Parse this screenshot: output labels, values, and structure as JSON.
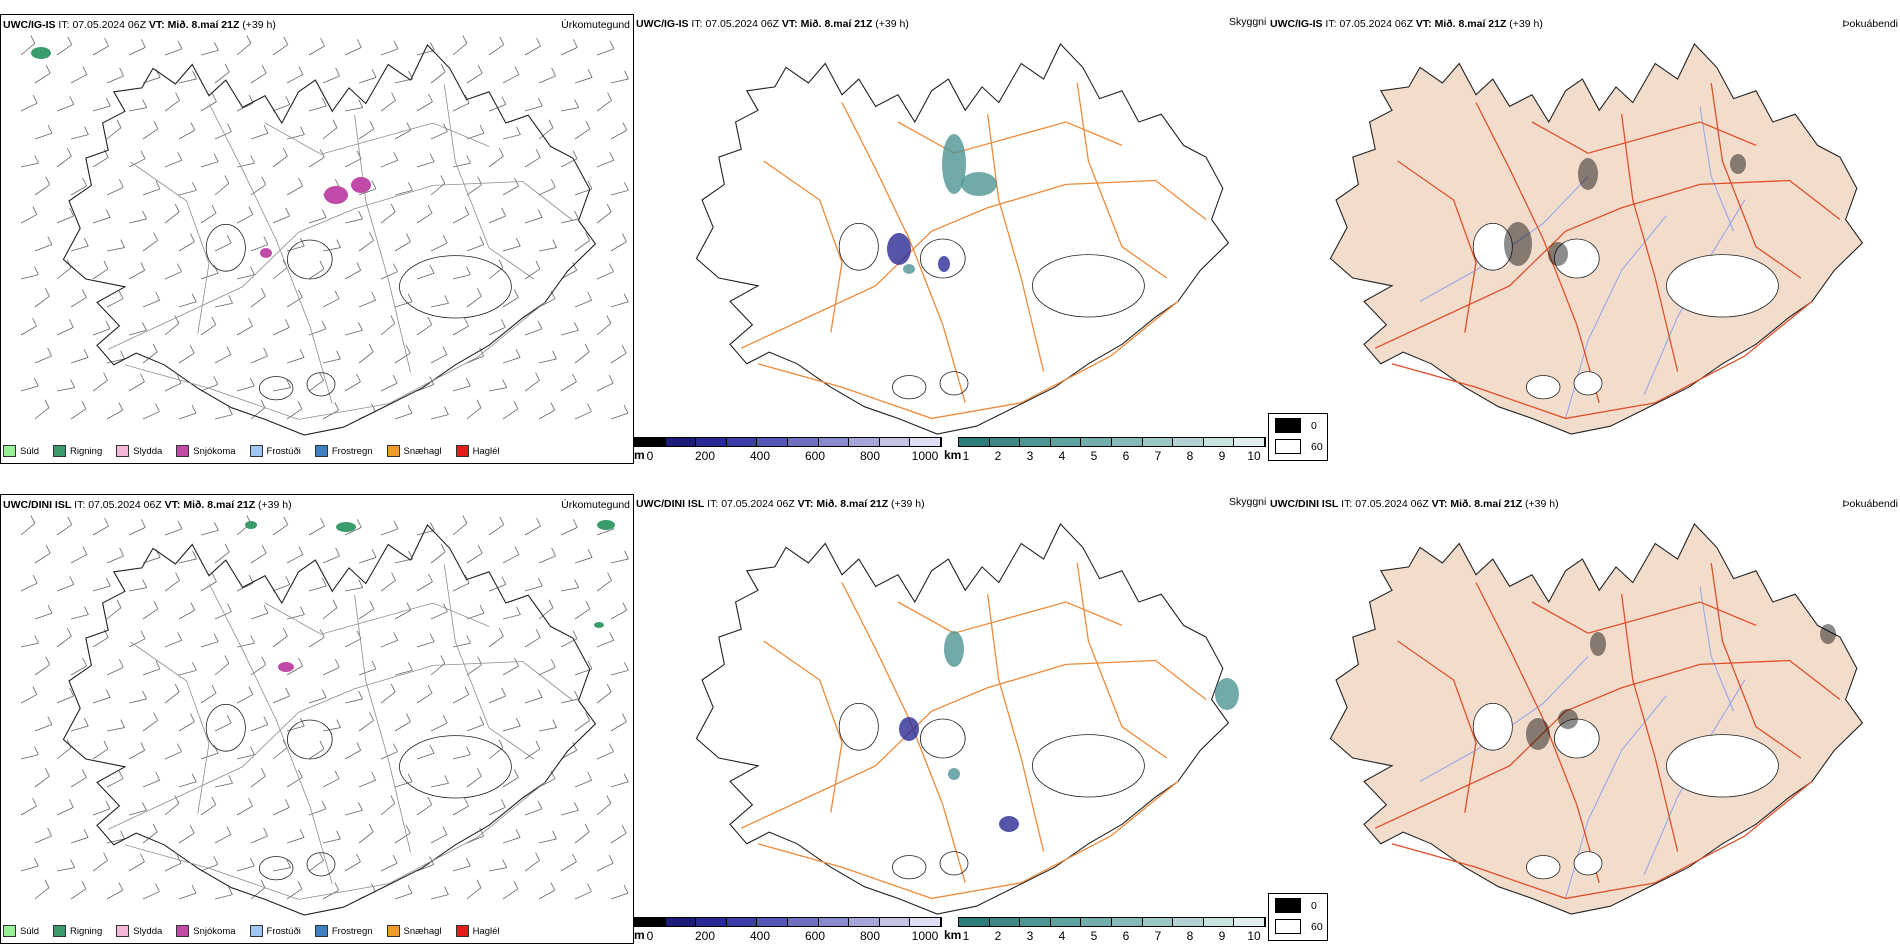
{
  "rows": [
    {
      "model": "UWC/IG-IS",
      "it_label": "IT:",
      "it_value": "07.05.2024 06Z",
      "vt_label": "VT:",
      "vt_value": "Mið. 8.maí 21Z",
      "lead": "(+39 h)",
      "left_title": "Úrkomutegund",
      "mid_title": "Skyggni",
      "right_title": "Þokuábendi"
    },
    {
      "model": "UWC/DINI ISL",
      "it_label": "IT:",
      "it_value": "07.05.2024 06Z",
      "vt_label": "VT:",
      "vt_value": "Mið. 8.maí 21Z",
      "lead": "(+39 h)",
      "left_title": "Úrkomutegund",
      "mid_title": "Skyggni",
      "right_title": "Þokuábendi"
    }
  ],
  "precip_legend": [
    {
      "label": "Súld",
      "color": "#98f098"
    },
    {
      "label": "Rigning",
      "color": "#3a9b6b"
    },
    {
      "label": "Slydda",
      "color": "#f3b8d8"
    },
    {
      "label": "Snjókoma",
      "color": "#c04aa8"
    },
    {
      "label": "Frostúði",
      "color": "#9ec6ee"
    },
    {
      "label": "Frostregn",
      "color": "#3f7fc2"
    },
    {
      "label": "Snæhagl",
      "color": "#f29a2a"
    },
    {
      "label": "Haglél",
      "color": "#e0201c"
    }
  ],
  "visibility_m_bar": {
    "unit": "m",
    "ticks": [
      "0",
      "200",
      "400",
      "600",
      "800",
      "1000"
    ],
    "colors": [
      "#000000",
      "#1c1c78",
      "#2a2a94",
      "#3c3ca6",
      "#5656b4",
      "#6f6fc0",
      "#8a8acc",
      "#a6a6d8",
      "#c3c3e6",
      "#dedef2"
    ]
  },
  "visibility_km_bar": {
    "unit": "km",
    "ticks": [
      "1",
      "2",
      "3",
      "4",
      "5",
      "6",
      "7",
      "8",
      "9",
      "10"
    ],
    "colors": [
      "#2e7d7a",
      "#3d8986",
      "#4d9593",
      "#5fa19f",
      "#72adab",
      "#86bab8",
      "#9bc7c5",
      "#b1d4d2",
      "#c8e2e0",
      "#e0efee"
    ]
  },
  "fog_legend": [
    {
      "label": "0",
      "color": "#000000"
    },
    {
      "label": "60",
      "color": "#ffffff"
    }
  ],
  "colors": {
    "map_outline": "#222222",
    "roads_mid": "#ee8a3a",
    "roads_right": "#e0502a",
    "land_right": "#f2ddcc",
    "rivers": "#8a9cf0",
    "wind_barbs": "#666666"
  }
}
